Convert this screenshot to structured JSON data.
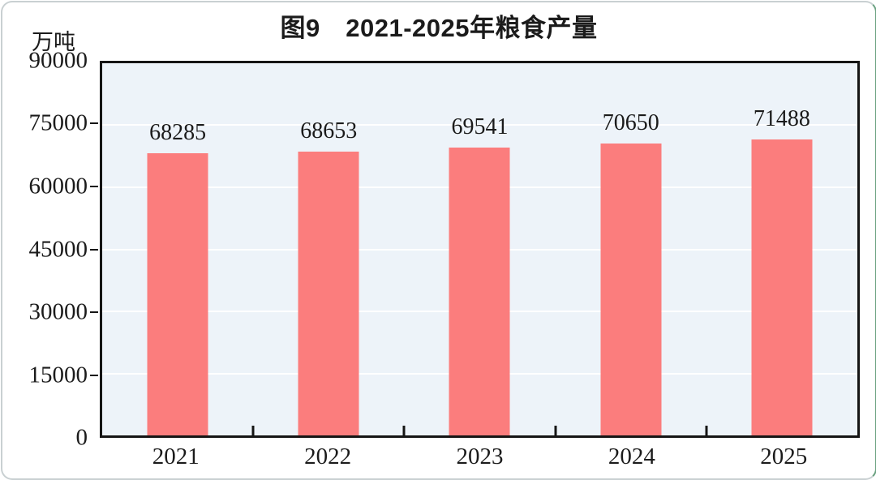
{
  "chart": {
    "title": "图9　2021-2025年粮食产量",
    "unit_label": "万吨"
  },
  "chart_data": {
    "type": "bar",
    "title": "图9 2021-2025年粮食产量",
    "categories": [
      "2021",
      "2022",
      "2023",
      "2024",
      "2025"
    ],
    "values": [
      68285,
      68653,
      69541,
      70650,
      71488
    ],
    "value_labels_shown": true,
    "xlabel": "",
    "ylabel": "万吨",
    "ylim": [
      0,
      90000
    ],
    "yticks": [
      0,
      15000,
      30000,
      45000,
      60000,
      75000,
      90000
    ],
    "grid": "horizontal",
    "legend": "none",
    "colors": {
      "bar": "#fb7d7d",
      "plot_background": "#edf3f9",
      "gridline": "#ffffff",
      "axis": "#151515",
      "text": "#1b1b1b"
    }
  }
}
